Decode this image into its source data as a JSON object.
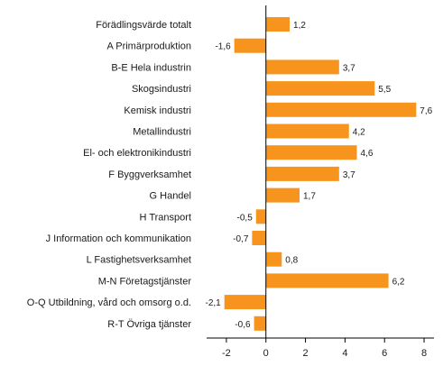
{
  "chart_data": {
    "type": "bar",
    "orientation": "horizontal",
    "title": "",
    "xlabel": "",
    "ylabel": "",
    "categories": [
      "Förädlingsvärde totalt",
      "A Primärproduktion",
      "B-E Hela industrin",
      "Skogsindustri",
      "Kemisk industri",
      "Metallindustri",
      "El- och elektronikindustri",
      "F Byggverksamhet",
      "G Handel",
      "H Transport",
      "J Information och kommunikation",
      "L Fastighetsverksamhet",
      "M-N Företagstjänster",
      "O-Q Utbildning, vård och omsorg o.d.",
      "R-T Övriga tjänster"
    ],
    "values": [
      1.2,
      -1.6,
      3.7,
      5.5,
      7.6,
      4.2,
      4.6,
      3.7,
      1.7,
      -0.5,
      -0.7,
      0.8,
      6.2,
      -2.1,
      -0.6
    ],
    "value_labels": [
      "1,2",
      "-1,6",
      "3,7",
      "5,5",
      "7,6",
      "4,2",
      "4,6",
      "3,7",
      "1,7",
      "-0,5",
      "-0,7",
      "0,8",
      "6,2",
      "-2,1",
      "-0,6"
    ],
    "xlim": [
      -3.0,
      8.5
    ],
    "xticks": [
      -2,
      0,
      2,
      4,
      6,
      8
    ],
    "xtick_labels": [
      "-2",
      "0",
      "2",
      "4",
      "6",
      "8"
    ],
    "bar_color": "#f7941d",
    "grid": false,
    "legend": "none"
  }
}
